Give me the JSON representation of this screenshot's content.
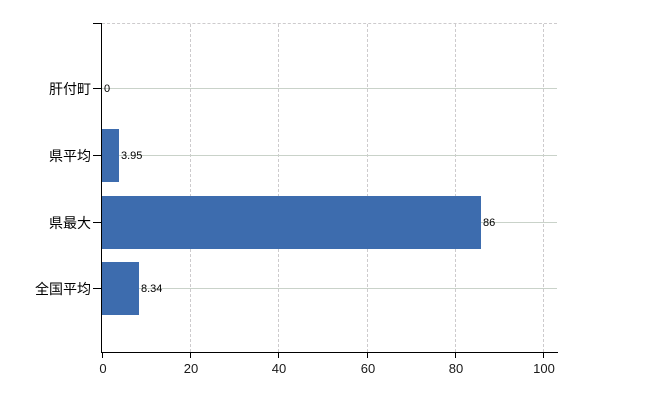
{
  "chart_data": {
    "type": "bar",
    "orientation": "horizontal",
    "title": "",
    "xlabel": "",
    "ylabel": "",
    "legend": "none",
    "grid": "on",
    "categories": [
      "肝付町",
      "県平均",
      "県最大",
      "全国平均"
    ],
    "values": [
      0,
      3.95,
      86,
      8.34
    ],
    "value_labels": [
      "0",
      "3.95",
      "86",
      "8.34"
    ],
    "x_tick_labels": [
      "0",
      "20",
      "40",
      "60",
      "80",
      "100"
    ],
    "x_tick_values": [
      0,
      20,
      40,
      60,
      80,
      100
    ],
    "xlim": [
      0,
      103.2
    ],
    "colors": {
      "bar": "#3d6cae",
      "h_gridline": "#c9d2c9",
      "v_gridline": "#cdcbcd",
      "axis": "#000000",
      "text": "#000000",
      "background": "#ffffff"
    }
  }
}
